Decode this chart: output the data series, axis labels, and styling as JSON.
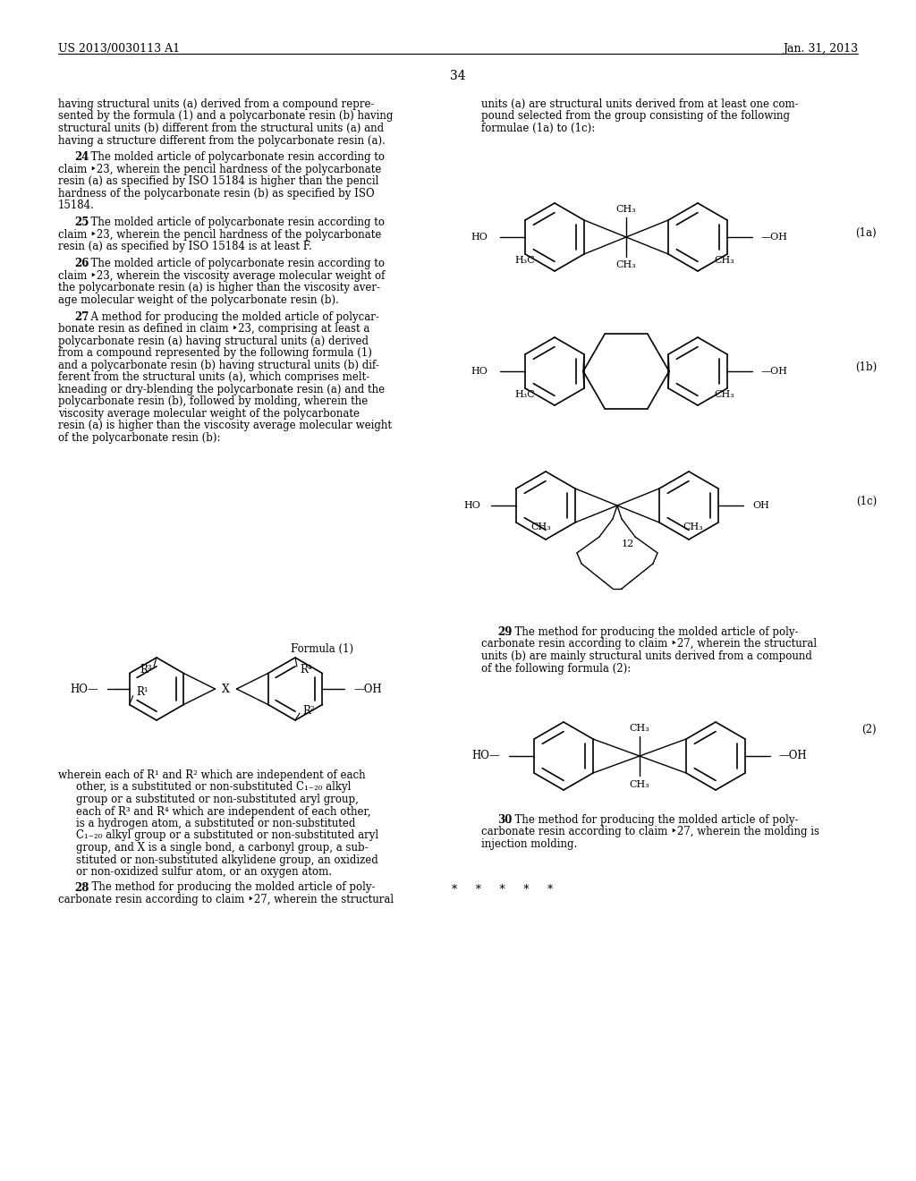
{
  "background_color": "#ffffff",
  "page_number": "34",
  "header_left": "US 2013/0030113 A1",
  "header_right": "Jan. 31, 2013",
  "figsize": [
    10.24,
    13.2
  ],
  "dpi": 100
}
